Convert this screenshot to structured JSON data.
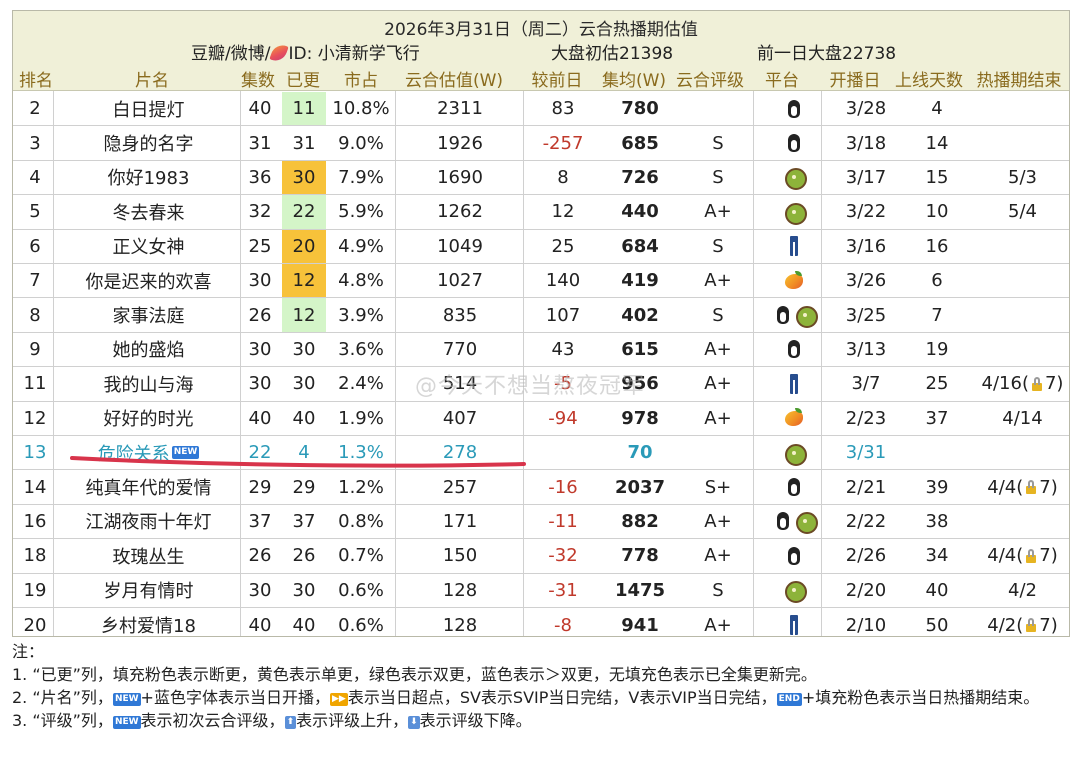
{
  "header": {
    "title": "2026年3月31日（周二）云合热播期估值",
    "source_prefix": "豆瓣/微博/",
    "source_suffix": "ID: 小清新学飞行",
    "initial_estimate": "大盘初估21398",
    "prev_day": "前一日大盘22738"
  },
  "columns": [
    "排名",
    "片名",
    "集数",
    "已更",
    "市占",
    "云合估值(W)",
    "较前日",
    "集均(W)",
    "云合评级",
    "平台",
    "开播日",
    "上线天数",
    "热播期结束"
  ],
  "rows": [
    {
      "rank": "2",
      "name": "白日提灯",
      "episodes": "40",
      "updated": "11",
      "updated_fill": "green",
      "share": "10.8%",
      "value": "2311",
      "delta": "83",
      "avg": "780",
      "rating": "",
      "platform": [
        "penguin-icon"
      ],
      "start": "3/28",
      "days": "4",
      "end": ""
    },
    {
      "rank": "3",
      "name": "隐身的名字",
      "episodes": "31",
      "updated": "31",
      "updated_fill": "",
      "share": "9.0%",
      "value": "1926",
      "delta": "-257",
      "avg": "685",
      "rating": "S",
      "platform": [
        "penguin-icon"
      ],
      "start": "3/18",
      "days": "14",
      "end": ""
    },
    {
      "rank": "4",
      "name": "你好1983",
      "episodes": "36",
      "updated": "30",
      "updated_fill": "yellow",
      "share": "7.9%",
      "value": "1690",
      "delta": "8",
      "avg": "726",
      "rating": "S",
      "platform": [
        "kiwi-icon"
      ],
      "start": "3/17",
      "days": "15",
      "end": "5/3"
    },
    {
      "rank": "5",
      "name": "冬去春来",
      "episodes": "32",
      "updated": "22",
      "updated_fill": "green",
      "share": "5.9%",
      "value": "1262",
      "delta": "12",
      "avg": "440",
      "rating": "A+",
      "platform": [
        "kiwi-icon"
      ],
      "start": "3/22",
      "days": "10",
      "end": "5/4"
    },
    {
      "rank": "6",
      "name": "正义女神",
      "episodes": "25",
      "updated": "20",
      "updated_fill": "yellow",
      "share": "4.9%",
      "value": "1049",
      "delta": "25",
      "avg": "684",
      "rating": "S",
      "platform": [
        "jeans-icon"
      ],
      "start": "3/16",
      "days": "16",
      "end": ""
    },
    {
      "rank": "7",
      "name": "你是迟来的欢喜",
      "episodes": "30",
      "updated": "12",
      "updated_fill": "yellow",
      "share": "4.8%",
      "value": "1027",
      "delta": "140",
      "avg": "419",
      "rating": "A+",
      "platform": [
        "mango-icon"
      ],
      "start": "3/26",
      "days": "6",
      "end": ""
    },
    {
      "rank": "8",
      "name": "家事法庭",
      "episodes": "26",
      "updated": "12",
      "updated_fill": "green",
      "share": "3.9%",
      "value": "835",
      "delta": "107",
      "avg": "402",
      "rating": "S",
      "platform": [
        "penguin-icon",
        "kiwi-icon"
      ],
      "start": "3/25",
      "days": "7",
      "end": ""
    },
    {
      "rank": "9",
      "name": "她的盛焰",
      "episodes": "30",
      "updated": "30",
      "updated_fill": "",
      "share": "3.6%",
      "value": "770",
      "delta": "43",
      "avg": "615",
      "rating": "A+",
      "platform": [
        "penguin-icon"
      ],
      "start": "3/13",
      "days": "19",
      "end": ""
    },
    {
      "rank": "11",
      "name": "我的山与海",
      "episodes": "30",
      "updated": "30",
      "updated_fill": "",
      "share": "2.4%",
      "value": "514",
      "delta": "-5",
      "avg": "956",
      "rating": "A+",
      "platform": [
        "jeans-icon"
      ],
      "start": "3/7",
      "days": "25",
      "end": "4/16(",
      "end_lock": true,
      "end_suffix": "7)"
    },
    {
      "rank": "12",
      "name": "好好的时光",
      "episodes": "40",
      "updated": "40",
      "updated_fill": "",
      "share": "1.9%",
      "value": "407",
      "delta": "-94",
      "avg": "978",
      "rating": "A+",
      "platform": [
        "mango-icon"
      ],
      "start": "2/23",
      "days": "37",
      "end": "4/14"
    },
    {
      "rank": "13",
      "name": "危险关系",
      "is_new": true,
      "episodes": "22",
      "updated": "4",
      "updated_fill": "",
      "share": "1.3%",
      "value": "278",
      "delta": "",
      "avg": "70",
      "rating": "",
      "platform": [
        "kiwi-icon"
      ],
      "start": "3/31",
      "days": "",
      "end": ""
    },
    {
      "rank": "14",
      "name": "纯真年代的爱情",
      "episodes": "29",
      "updated": "29",
      "updated_fill": "",
      "share": "1.2%",
      "value": "257",
      "delta": "-16",
      "avg": "2037",
      "rating": "S+",
      "platform": [
        "penguin-icon"
      ],
      "start": "2/21",
      "days": "39",
      "end": "4/4(",
      "end_lock": true,
      "end_suffix": "7)"
    },
    {
      "rank": "16",
      "name": "江湖夜雨十年灯",
      "episodes": "37",
      "updated": "37",
      "updated_fill": "",
      "share": "0.8%",
      "value": "171",
      "delta": "-11",
      "avg": "882",
      "rating": "A+",
      "platform": [
        "penguin-icon",
        "kiwi-icon"
      ],
      "start": "2/22",
      "days": "38",
      "end": ""
    },
    {
      "rank": "18",
      "name": "玫瑰丛生",
      "episodes": "26",
      "updated": "26",
      "updated_fill": "",
      "share": "0.7%",
      "value": "150",
      "delta": "-32",
      "avg": "778",
      "rating": "A+",
      "platform": [
        "penguin-icon"
      ],
      "start": "2/26",
      "days": "34",
      "end": "4/4(",
      "end_lock": true,
      "end_suffix": "7)"
    },
    {
      "rank": "19",
      "name": "岁月有情时",
      "episodes": "30",
      "updated": "30",
      "updated_fill": "",
      "share": "0.6%",
      "value": "128",
      "delta": "-31",
      "avg": "1475",
      "rating": "S",
      "platform": [
        "kiwi-icon"
      ],
      "start": "2/20",
      "days": "40",
      "end": "4/2"
    },
    {
      "rank": "20",
      "name": "乡村爱情18",
      "episodes": "40",
      "updated": "40",
      "updated_fill": "",
      "share": "0.6%",
      "value": "128",
      "delta": "-8",
      "avg": "941",
      "rating": "A+",
      "platform": [
        "jeans-icon"
      ],
      "start": "2/10",
      "days": "50",
      "end": "4/2(",
      "end_lock": true,
      "end_suffix": "7)"
    }
  ],
  "watermark": "@今天不想当熬夜冠军",
  "badges": {
    "new": "NEW",
    "ff": "▶▶",
    "end": "END",
    "up": "⬆",
    "down": "⬇"
  },
  "notes": {
    "heading": "注：",
    "n1": "1. “已更”列，填充粉色表示断更，黄色表示单更，绿色表示双更，蓝色表示＞双更，无填充色表示已全集更新完。",
    "n2a": "2. “片名”列，",
    "n2b": "+蓝色字体表示当日开播，",
    "n2c": "表示当日超点，SV表示SVIP当日完结，V表示VIP当日完结，",
    "n2d": "+填充粉色表示当日热播期结束。",
    "n3a": "3. “评级”列，",
    "n3b": "表示初次云合评级，",
    "n3c": "表示评级上升，",
    "n3d": "表示评级下降。"
  }
}
